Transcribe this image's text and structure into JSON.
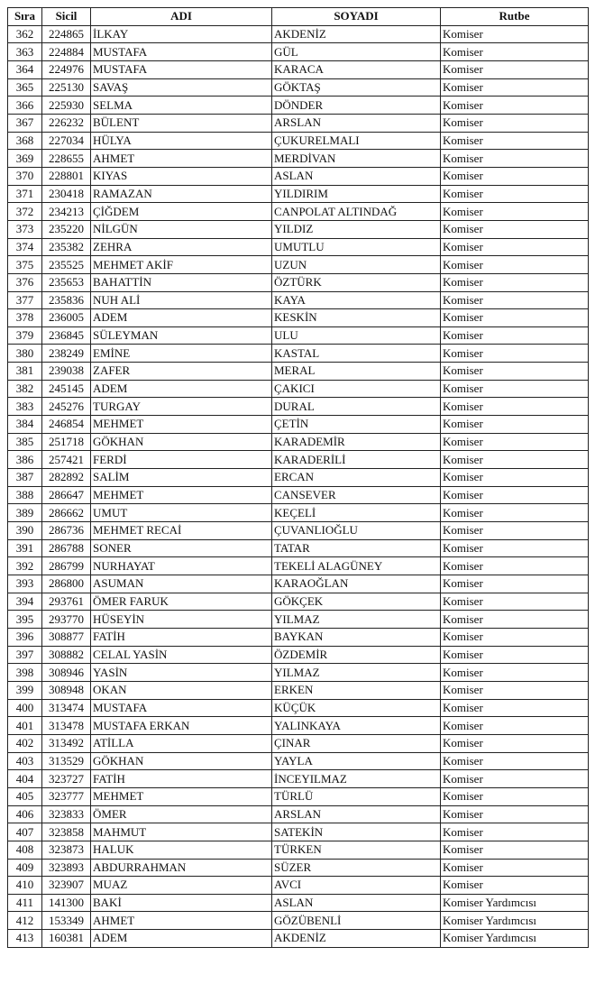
{
  "headers": [
    "Sıra",
    "Sicil",
    "ADI",
    "SOYADI",
    "Rutbe"
  ],
  "rows": [
    [
      "362",
      "224865",
      "İLKAY",
      "AKDENİZ",
      "Komiser"
    ],
    [
      "363",
      "224884",
      "MUSTAFA",
      "GÜL",
      "Komiser"
    ],
    [
      "364",
      "224976",
      "MUSTAFA",
      "KARACA",
      "Komiser"
    ],
    [
      "365",
      "225130",
      "SAVAŞ",
      "GÖKTAŞ",
      "Komiser"
    ],
    [
      "366",
      "225930",
      "SELMA",
      "DÖNDER",
      "Komiser"
    ],
    [
      "367",
      "226232",
      "BÜLENT",
      "ARSLAN",
      "Komiser"
    ],
    [
      "368",
      "227034",
      "HÜLYA",
      "ÇUKURELMALI",
      "Komiser"
    ],
    [
      "369",
      "228655",
      "AHMET",
      "MERDİVAN",
      "Komiser"
    ],
    [
      "370",
      "228801",
      "KIYAS",
      "ASLAN",
      "Komiser"
    ],
    [
      "371",
      "230418",
      "RAMAZAN",
      "YILDIRIM",
      "Komiser"
    ],
    [
      "372",
      "234213",
      "ÇİĞDEM",
      "CANPOLAT ALTINDAĞ",
      "Komiser"
    ],
    [
      "373",
      "235220",
      "NİLGÜN",
      "YILDIZ",
      "Komiser"
    ],
    [
      "374",
      "235382",
      "ZEHRA",
      "UMUTLU",
      "Komiser"
    ],
    [
      "375",
      "235525",
      "MEHMET AKİF",
      "UZUN",
      "Komiser"
    ],
    [
      "376",
      "235653",
      "BAHATTİN",
      "ÖZTÜRK",
      "Komiser"
    ],
    [
      "377",
      "235836",
      "NUH ALİ",
      "KAYA",
      "Komiser"
    ],
    [
      "378",
      "236005",
      "ADEM",
      "KESKİN",
      "Komiser"
    ],
    [
      "379",
      "236845",
      "SÜLEYMAN",
      "ULU",
      "Komiser"
    ],
    [
      "380",
      "238249",
      "EMİNE",
      "KASTAL",
      "Komiser"
    ],
    [
      "381",
      "239038",
      "ZAFER",
      "MERAL",
      "Komiser"
    ],
    [
      "382",
      "245145",
      "ADEM",
      "ÇAKICI",
      "Komiser"
    ],
    [
      "383",
      "245276",
      "TURGAY",
      "DURAL",
      "Komiser"
    ],
    [
      "384",
      "246854",
      "MEHMET",
      "ÇETİN",
      "Komiser"
    ],
    [
      "385",
      "251718",
      "GÖKHAN",
      "KARADEMİR",
      "Komiser"
    ],
    [
      "386",
      "257421",
      "FERDİ",
      "KARADERİLİ",
      "Komiser"
    ],
    [
      "387",
      "282892",
      "SALİM",
      "ERCAN",
      "Komiser"
    ],
    [
      "388",
      "286647",
      "MEHMET",
      "CANSEVER",
      "Komiser"
    ],
    [
      "389",
      "286662",
      "UMUT",
      "KEÇELİ",
      "Komiser"
    ],
    [
      "390",
      "286736",
      "MEHMET RECAİ",
      "ÇUVANLIOĞLU",
      "Komiser"
    ],
    [
      "391",
      "286788",
      "SONER",
      "TATAR",
      "Komiser"
    ],
    [
      "392",
      "286799",
      "NURHAYAT",
      "TEKELİ ALAGÜNEY",
      "Komiser"
    ],
    [
      "393",
      "286800",
      "ASUMAN",
      "KARAOĞLAN",
      "Komiser"
    ],
    [
      "394",
      "293761",
      "ÖMER FARUK",
      "GÖKÇEK",
      "Komiser"
    ],
    [
      "395",
      "293770",
      "HÜSEYİN",
      "YILMAZ",
      "Komiser"
    ],
    [
      "396",
      "308877",
      "FATİH",
      "BAYKAN",
      "Komiser"
    ],
    [
      "397",
      "308882",
      "CELAL YASİN",
      "ÖZDEMİR",
      "Komiser"
    ],
    [
      "398",
      "308946",
      "YASİN",
      "YILMAZ",
      "Komiser"
    ],
    [
      "399",
      "308948",
      "OKAN",
      "ERKEN",
      "Komiser"
    ],
    [
      "400",
      "313474",
      "MUSTAFA",
      "KÜÇÜK",
      "Komiser"
    ],
    [
      "401",
      "313478",
      "MUSTAFA ERKAN",
      "YALINKAYA",
      "Komiser"
    ],
    [
      "402",
      "313492",
      "ATİLLA",
      "ÇINAR",
      "Komiser"
    ],
    [
      "403",
      "313529",
      "GÖKHAN",
      "YAYLA",
      "Komiser"
    ],
    [
      "404",
      "323727",
      "FATİH",
      "İNCEYILMAZ",
      "Komiser"
    ],
    [
      "405",
      "323777",
      "MEHMET",
      "TÜRLÜ",
      "Komiser"
    ],
    [
      "406",
      "323833",
      "ÖMER",
      "ARSLAN",
      "Komiser"
    ],
    [
      "407",
      "323858",
      "MAHMUT",
      "SATEKİN",
      "Komiser"
    ],
    [
      "408",
      "323873",
      "HALUK",
      "TÜRKEN",
      "Komiser"
    ],
    [
      "409",
      "323893",
      "ABDURRAHMAN",
      "SÜZER",
      "Komiser"
    ],
    [
      "410",
      "323907",
      "MUAZ",
      "AVCI",
      "Komiser"
    ],
    [
      "411",
      "141300",
      "BAKİ",
      "ASLAN",
      "Komiser Yardımcısı"
    ],
    [
      "412",
      "153349",
      "AHMET",
      "GÖZÜBENLİ",
      "Komiser Yardımcısı"
    ],
    [
      "413",
      "160381",
      "ADEM",
      "AKDENİZ",
      "Komiser Yardımcısı"
    ]
  ]
}
